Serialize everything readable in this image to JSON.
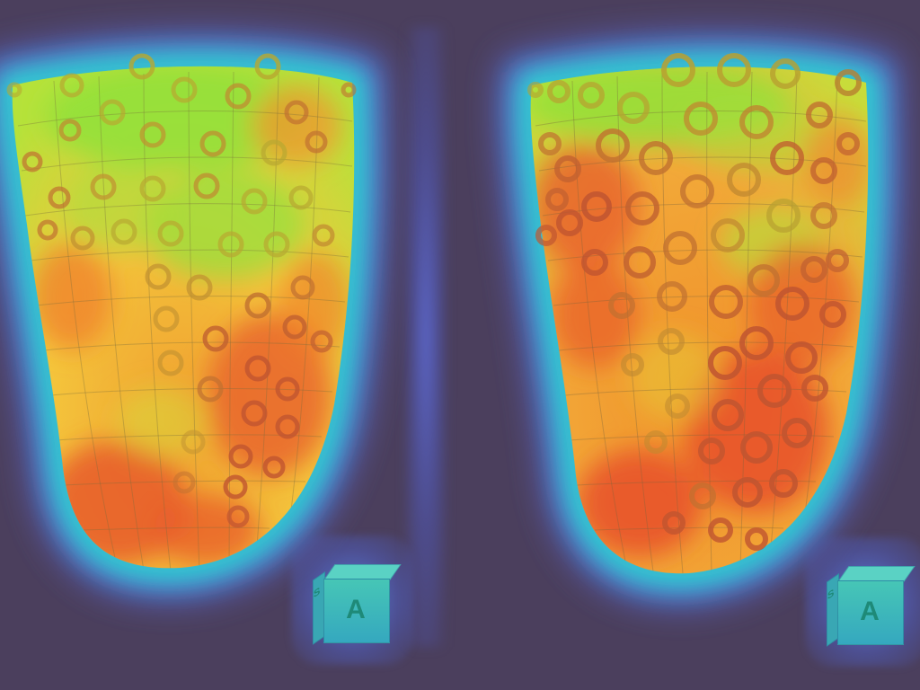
{
  "views": [
    {
      "id": "left",
      "cube": {
        "front_label": "A",
        "side_label": "S"
      }
    },
    {
      "id": "right",
      "cube": {
        "front_label": "A",
        "side_label": "S"
      }
    }
  ],
  "colors": {
    "background": "#4b3f5d",
    "glow_blue": "#5a6fe0",
    "glow_cyan": "#29d6d6",
    "low": "#8fe23a",
    "mid": "#f0c43a",
    "high": "#e8502a"
  },
  "icons": {
    "orientation_cube": "orientation-cube-icon"
  }
}
